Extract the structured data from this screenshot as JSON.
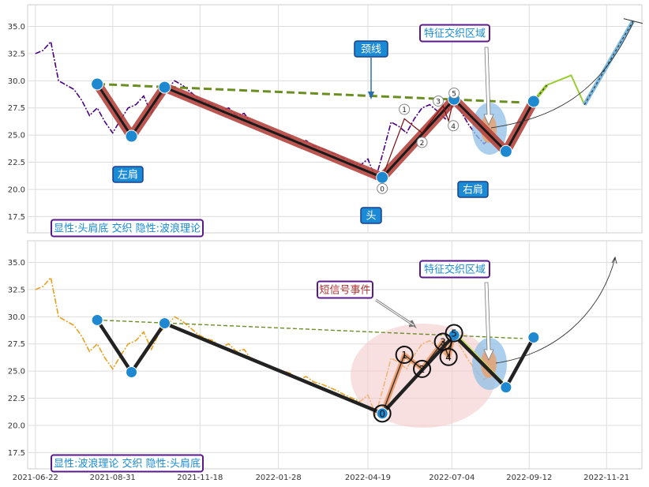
{
  "chart_data": [
    {
      "type": "line",
      "panel": "top",
      "ylim": [
        16,
        37
      ],
      "xlim": [
        "2021-06-15",
        "2022-12-23"
      ],
      "grid": true,
      "y_ticks": [
        "17.5",
        "20.0",
        "22.5",
        "25.0",
        "27.5",
        "30.0",
        "32.5",
        "35.0"
      ],
      "price_series": {
        "color": "#4b0082",
        "x": [
          "2021-06-22",
          "2021-06-29",
          "2021-07-06",
          "2021-07-13",
          "2021-07-20",
          "2021-07-27",
          "2021-08-03",
          "2021-08-10",
          "2021-08-17",
          "2021-08-24",
          "2021-08-31",
          "2021-09-07",
          "2021-09-14",
          "2021-09-21",
          "2021-09-28",
          "2021-10-05",
          "2021-10-12",
          "2021-10-19",
          "2021-10-26",
          "2021-11-02",
          "2021-11-09",
          "2021-11-16",
          "2021-11-23",
          "2021-11-30",
          "2021-12-07",
          "2021-12-14",
          "2021-12-21",
          "2021-12-28",
          "2022-01-04",
          "2022-01-11",
          "2022-01-18",
          "2022-01-25",
          "2022-02-01",
          "2022-02-08",
          "2022-02-15",
          "2022-02-22",
          "2022-03-01",
          "2022-03-08",
          "2022-03-15",
          "2022-03-22",
          "2022-03-29",
          "2022-04-05",
          "2022-04-12",
          "2022-04-19",
          "2022-04-26",
          "2022-05-03",
          "2022-05-10",
          "2022-05-17",
          "2022-05-24",
          "2022-05-31",
          "2022-06-07",
          "2022-06-14",
          "2022-06-21",
          "2022-06-28",
          "2022-07-05",
          "2022-07-12",
          "2022-07-19",
          "2022-07-26",
          "2022-08-02",
          "2022-08-09",
          "2022-08-16"
        ],
        "y": [
          32.5,
          32.8,
          33.6,
          30.0,
          29.6,
          29.2,
          28.2,
          26.8,
          27.5,
          26.2,
          25.2,
          26.4,
          27.5,
          27.8,
          28.6,
          27.0,
          28.5,
          29.2,
          30.0,
          29.6,
          29.0,
          28.4,
          28.0,
          27.8,
          27.2,
          27.5,
          26.8,
          27.0,
          26.0,
          25.8,
          25.6,
          25.2,
          25.0,
          24.8,
          24.2,
          24.5,
          24.0,
          23.8,
          23.5,
          23.2,
          22.8,
          22.5,
          22.2,
          22.8,
          21.0,
          23.5,
          26.2,
          25.8,
          25.2,
          26.5,
          27.5,
          27.8,
          27.2,
          26.5,
          28.5,
          27.2,
          26.0,
          25.0,
          24.2,
          24.8,
          24.0
        ]
      },
      "pattern_points": [
        {
          "date": "2021-08-17",
          "value": 29.7
        },
        {
          "date": "2021-09-17",
          "value": 24.9
        },
        {
          "date": "2021-10-17",
          "value": 29.4
        },
        {
          "date": "2022-05-02",
          "value": 21.1
        },
        {
          "date": "2022-07-06",
          "value": 28.3
        },
        {
          "date": "2022-08-22",
          "value": 23.5
        },
        {
          "date": "2022-09-16",
          "value": 28.1
        }
      ],
      "neckline": [
        {
          "date": "2021-08-17",
          "value": 29.7
        },
        {
          "date": "2022-09-06",
          "value": 28.0
        }
      ],
      "projection": [
        {
          "date": "2022-09-16",
          "value": 28.1
        },
        {
          "date": "2022-09-28",
          "value": 29.6
        },
        {
          "date": "2022-10-20",
          "value": 30.5
        },
        {
          "date": "2022-11-01",
          "value": 27.8
        },
        {
          "date": "2022-12-15",
          "value": 35.5
        }
      ],
      "wave_points": [
        {
          "label": "0",
          "date": "2022-05-02",
          "value": 21.1
        },
        {
          "label": "1",
          "date": "2022-05-22",
          "value": 26.5
        },
        {
          "label": "2",
          "date": "2022-06-07",
          "value": 25.2
        },
        {
          "label": "3",
          "date": "2022-06-26",
          "value": 27.7
        },
        {
          "label": "4",
          "date": "2022-07-01",
          "value": 26.3
        },
        {
          "label": "5",
          "date": "2022-07-06",
          "value": 28.5
        }
      ],
      "annotations": {
        "left_shoulder": "左肩",
        "head": "头",
        "right_shoulder": "右肩",
        "neckline": "颈线",
        "feature_area": "特征交织区域",
        "caption": "显性:头肩底 交织 隐性:波浪理论"
      }
    },
    {
      "type": "line",
      "panel": "bottom",
      "ylim": [
        16,
        37
      ],
      "xlim": [
        "2021-06-15",
        "2022-12-23"
      ],
      "grid": true,
      "x_ticks": [
        "2021-06-22",
        "2021-08-31",
        "2021-11-18",
        "2022-01-28",
        "2022-04-19",
        "2022-07-04",
        "2022-09-12",
        "2022-11-21"
      ],
      "y_ticks": [
        "17.5",
        "20.0",
        "22.5",
        "25.0",
        "27.5",
        "30.0",
        "32.5",
        "35.0"
      ],
      "price_series_color": "#e8a020",
      "annotations": {
        "feature_area": "特征交织区域",
        "short_signal": "短信号事件",
        "caption": "显性:波浪理论 交织 隐性:头肩底"
      }
    }
  ]
}
